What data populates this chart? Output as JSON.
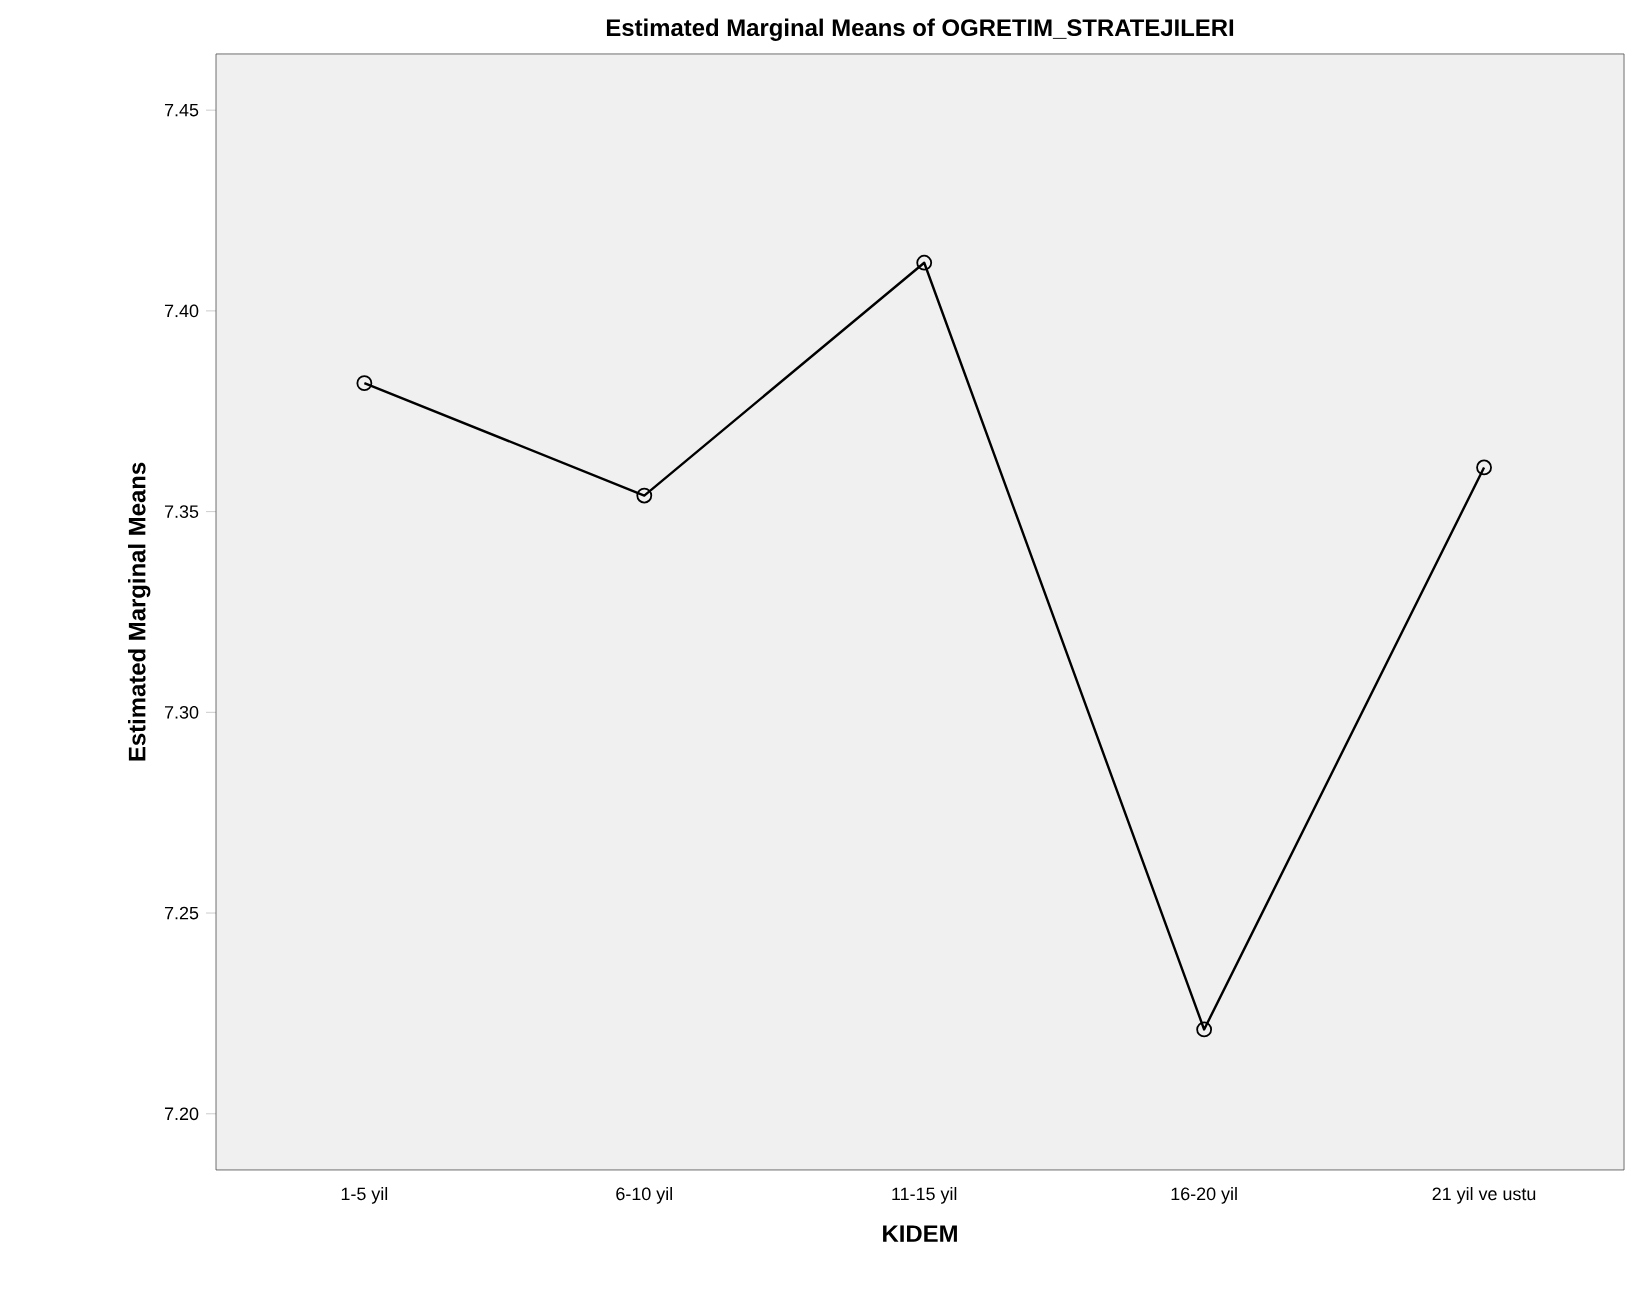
{
  "chart_data": {
    "type": "line",
    "title": "Estimated Marginal Means of OGRETIM_STRATEJILERI",
    "xlabel": "KIDEM",
    "ylabel": "Estimated Marginal Means",
    "categories": [
      "1-5 yil",
      "6-10 yil",
      "11-15 yil",
      "16-20 yil",
      "21 yil ve ustu"
    ],
    "series": [
      {
        "color": "#000000",
        "values": [
          7.382,
          7.354,
          7.412,
          7.221,
          7.361
        ]
      }
    ],
    "ylim": [
      7.186,
      7.464
    ],
    "yticks": [
      {
        "value": 7.2,
        "label": "7.20"
      },
      {
        "value": 7.25,
        "label": "7.25"
      },
      {
        "value": 7.3,
        "label": "7.30"
      },
      {
        "value": 7.35,
        "label": "7.35"
      },
      {
        "value": 7.4,
        "label": "7.40"
      },
      {
        "value": 7.45,
        "label": "7.45"
      }
    ],
    "marker": "circle",
    "line_style": "solid",
    "grid": false
  }
}
